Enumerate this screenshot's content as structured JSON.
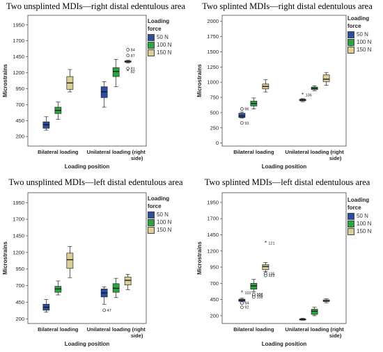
{
  "colors": {
    "n50": "#2b4fa0",
    "n100": "#27a83f",
    "n150": "#dccf95",
    "frame": "#444444",
    "text": "#222222"
  },
  "chart_data": [
    {
      "type": "boxplot",
      "title": "Two unsplinted MDIs—right distal edentulous area",
      "ylabel": "Microstrains",
      "xlabel": "Loading position",
      "ylim": [
        50,
        2100
      ],
      "yticks": [
        "200",
        "450",
        "700",
        "950",
        "1200",
        "1450",
        "1700",
        "1950"
      ],
      "categories": [
        {
          "label": "Bilateral loading"
        },
        {
          "label": "Unilateral loading (right",
          "label2": "side)"
        }
      ],
      "legend_title": [
        "Loading",
        "force"
      ],
      "series": [
        {
          "name": "50 N",
          "color": "#2b4fa0",
          "boxes": [
            {
              "min": 300,
              "q1": 330,
              "median": 385,
              "q3": 430,
              "max": 510,
              "outliers": []
            },
            {
              "min": 660,
              "q1": 810,
              "median": 900,
              "q3": 980,
              "max": 1060,
              "outliers": []
            }
          ]
        },
        {
          "name": "100 N",
          "color": "#27a83f",
          "boxes": [
            {
              "min": 470,
              "q1": 560,
              "median": 610,
              "q3": 660,
              "max": 740,
              "outliers": []
            },
            {
              "min": 980,
              "q1": 1140,
              "median": 1220,
              "q3": 1280,
              "max": 1410,
              "outliers": []
            }
          ]
        },
        {
          "name": "150 N",
          "color": "#dccf95",
          "boxes": [
            {
              "min": 900,
              "q1": 940,
              "median": 1040,
              "q3": 1140,
              "max": 1250,
              "outliers": []
            },
            {
              "min": 1355,
              "q1": 1365,
              "median": 1375,
              "q3": 1385,
              "max": 1395,
              "outliers": [
                {
                  "value": 1560,
                  "label": "84",
                  "marker": "circle"
                },
                {
                  "value": 1470,
                  "label": "87",
                  "marker": "circle"
                },
                {
                  "value": 1265,
                  "label": "81",
                  "marker": "circle"
                },
                {
                  "value": 1215,
                  "label": "82",
                  "marker": "star"
                }
              ]
            }
          ]
        }
      ]
    },
    {
      "type": "boxplot",
      "title": "Two splinted MDIs—right distal edentulous area",
      "ylabel": "Microstrains",
      "xlabel": "Loading position",
      "ylim": [
        -50,
        2100
      ],
      "yticks": [
        "0",
        "250",
        "500",
        "750",
        "1000",
        "1250",
        "1500",
        "1750",
        "2000"
      ],
      "categories": [
        {
          "label": "Bilateral loading"
        },
        {
          "label": "Unilateral loading (right",
          "label2": "side)"
        }
      ],
      "legend_title": [
        "Loading",
        "force"
      ],
      "series": [
        {
          "name": "50 N",
          "color": "#2b4fa0",
          "boxes": [
            {
              "min": 410,
              "q1": 420,
              "median": 445,
              "q3": 490,
              "max": 510,
              "outliers": [
                {
                  "value": 560,
                  "label": "96",
                  "marker": "circle"
                },
                {
                  "value": 330,
                  "label": "93",
                  "marker": "circle"
                }
              ]
            },
            {
              "min": 680,
              "q1": 695,
              "median": 710,
              "q3": 720,
              "max": 730,
              "outliers": [
                {
                  "value": 790,
                  "label": "136",
                  "marker": "star"
                }
              ]
            }
          ]
        },
        {
          "name": "100 N",
          "color": "#27a83f",
          "boxes": [
            {
              "min": 560,
              "q1": 610,
              "median": 650,
              "q3": 690,
              "max": 740,
              "outliers": []
            },
            {
              "min": 860,
              "q1": 880,
              "median": 900,
              "q3": 920,
              "max": 940,
              "outliers": []
            }
          ]
        },
        {
          "name": "150 N",
          "color": "#dccf95",
          "boxes": [
            {
              "min": 840,
              "q1": 890,
              "median": 930,
              "q3": 970,
              "max": 1040,
              "outliers": []
            },
            {
              "min": 950,
              "q1": 1010,
              "median": 1050,
              "q3": 1120,
              "max": 1160,
              "outliers": []
            }
          ]
        }
      ]
    },
    {
      "type": "boxplot",
      "title": "Two unsplinted MDIs—left distal edentulous area",
      "ylabel": "Microstrains",
      "xlabel": "Loading position",
      "ylim": [
        130,
        2100
      ],
      "yticks": [
        "200",
        "450",
        "700",
        "950",
        "1200",
        "1450",
        "1700",
        "1950"
      ],
      "categories": [
        {
          "label": "Bilateral loading"
        },
        {
          "label": "Unilateral loading (right",
          "label2": "side)"
        }
      ],
      "legend_title": [
        "Loading",
        "force"
      ],
      "series": [
        {
          "name": "50 N",
          "color": "#2b4fa0",
          "boxes": [
            {
              "min": 300,
              "q1": 330,
              "median": 375,
              "q3": 420,
              "max": 490,
              "outliers": []
            },
            {
              "min": 420,
              "q1": 530,
              "median": 590,
              "q3": 650,
              "max": 680,
              "outliers": [
                {
                  "value": 330,
                  "label": "47",
                  "marker": "circle"
                }
              ]
            }
          ]
        },
        {
          "name": "100 N",
          "color": "#27a83f",
          "boxes": [
            {
              "min": 560,
              "q1": 600,
              "median": 650,
              "q3": 690,
              "max": 770,
              "outliers": []
            },
            {
              "min": 520,
              "q1": 600,
              "median": 660,
              "q3": 730,
              "max": 810,
              "outliers": []
            }
          ]
        },
        {
          "name": "150 N",
          "color": "#dccf95",
          "boxes": [
            {
              "min": 820,
              "q1": 960,
              "median": 1090,
              "q3": 1190,
              "max": 1290,
              "outliers": []
            },
            {
              "min": 640,
              "q1": 710,
              "median": 780,
              "q3": 830,
              "max": 870,
              "outliers": []
            }
          ]
        }
      ]
    },
    {
      "type": "boxplot",
      "title": "Two splinted MDIs—left distal edentulous area",
      "ylabel": "Microstrains",
      "xlabel": "Loading position",
      "ylim": [
        80,
        2100
      ],
      "yticks": [
        "200",
        "450",
        "700",
        "950",
        "1200",
        "1450",
        "1700",
        "1950"
      ],
      "categories": [
        {
          "label": "Bilateral loading"
        },
        {
          "label": "Unilateral loading (right",
          "label2": "side)"
        }
      ],
      "legend_title": [
        "Loading",
        "force"
      ],
      "series": [
        {
          "name": "50 N",
          "color": "#2b4fa0",
          "boxes": [
            {
              "min": 395,
              "q1": 420,
              "median": 440,
              "q3": 455,
              "max": 470,
              "outliers": [
                {
                  "value": 555,
                  "label": "102",
                  "marker": "star"
                },
                {
                  "value": 395,
                  "label": "94",
                  "marker": "circle"
                },
                {
                  "value": 330,
                  "label": "92",
                  "marker": "circle"
                }
              ]
            },
            {
              "min": 130,
              "q1": 140,
              "median": 145,
              "q3": 150,
              "max": 160,
              "outliers": []
            }
          ]
        },
        {
          "name": "100 N",
          "color": "#27a83f",
          "boxes": [
            {
              "min": 570,
              "q1": 610,
              "median": 660,
              "q3": 700,
              "max": 760,
              "outliers": [
                {
                  "value": 520,
                  "label": "105",
                  "marker": "circle"
                },
                {
                  "value": 490,
                  "label": "108",
                  "marker": "circle"
                },
                {
                  "value": 530,
                  "label": "107",
                  "marker": "circle"
                }
              ]
            },
            {
              "min": 200,
              "q1": 220,
              "median": 270,
              "q3": 300,
              "max": 330,
              "outliers": []
            }
          ]
        },
        {
          "name": "150 N",
          "color": "#dccf95",
          "boxes": [
            {
              "min": 880,
              "q1": 910,
              "median": 960,
              "q3": 990,
              "max": 1020,
              "outliers": [
                {
                  "value": 1320,
                  "label": "121",
                  "marker": "star"
                },
                {
                  "value": 850,
                  "label": "135",
                  "marker": "circle"
                },
                {
                  "value": 820,
                  "label": "122",
                  "marker": "circle"
                }
              ]
            },
            {
              "min": 400,
              "q1": 420,
              "median": 430,
              "q3": 445,
              "max": 460,
              "outliers": []
            }
          ]
        }
      ]
    }
  ]
}
